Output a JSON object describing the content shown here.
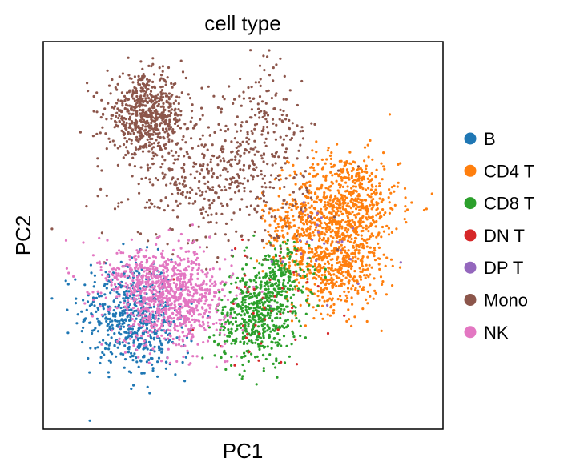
{
  "chart_data": {
    "type": "scatter",
    "title": "cell type",
    "xlabel": "PC1",
    "ylabel": "PC2",
    "xlim": [
      0,
      100
    ],
    "ylim": [
      0,
      100
    ],
    "grid": false,
    "ticks": false,
    "legend_position": "right",
    "series": [
      {
        "name": "B",
        "color": "#1f77b4",
        "clusters": [
          {
            "cx": 20,
            "cy": 30,
            "sx": 6,
            "sy": 7,
            "n": 420
          },
          {
            "cx": 26,
            "cy": 22,
            "sx": 5,
            "sy": 5,
            "n": 160
          }
        ]
      },
      {
        "name": "CD4 T",
        "color": "#ff7f0e",
        "clusters": [
          {
            "cx": 76,
            "cy": 58,
            "sx": 7,
            "sy": 7,
            "n": 700
          },
          {
            "cx": 73,
            "cy": 42,
            "sx": 6,
            "sy": 6,
            "n": 500
          },
          {
            "cx": 63,
            "cy": 52,
            "sx": 4,
            "sy": 5,
            "n": 140
          }
        ]
      },
      {
        "name": "CD8 T",
        "color": "#2ca02c",
        "clusters": [
          {
            "cx": 53,
            "cy": 28,
            "sx": 5,
            "sy": 6,
            "n": 450
          },
          {
            "cx": 59,
            "cy": 38,
            "sx": 4,
            "sy": 5,
            "n": 220
          }
        ]
      },
      {
        "name": "DN T",
        "color": "#d62728",
        "clusters": [
          {
            "cx": 57,
            "cy": 32,
            "sx": 9,
            "sy": 8,
            "n": 45
          }
        ]
      },
      {
        "name": "DP T",
        "color": "#9467bd",
        "clusters": [
          {
            "cx": 68,
            "cy": 48,
            "sx": 10,
            "sy": 9,
            "n": 28
          }
        ]
      },
      {
        "name": "Mono",
        "color": "#8c564b",
        "clusters": [
          {
            "cx": 25,
            "cy": 82,
            "sx": 5,
            "sy": 5,
            "n": 600
          },
          {
            "cx": 43,
            "cy": 65,
            "sx": 12,
            "sy": 9,
            "n": 500
          },
          {
            "cx": 55,
            "cy": 80,
            "sx": 5,
            "sy": 8,
            "n": 140
          }
        ]
      },
      {
        "name": "NK",
        "color": "#e377c2",
        "clusters": [
          {
            "cx": 32,
            "cy": 33,
            "sx": 7,
            "sy": 6,
            "n": 800
          },
          {
            "cx": 24,
            "cy": 40,
            "sx": 6,
            "sy": 4,
            "n": 200
          }
        ]
      }
    ]
  }
}
